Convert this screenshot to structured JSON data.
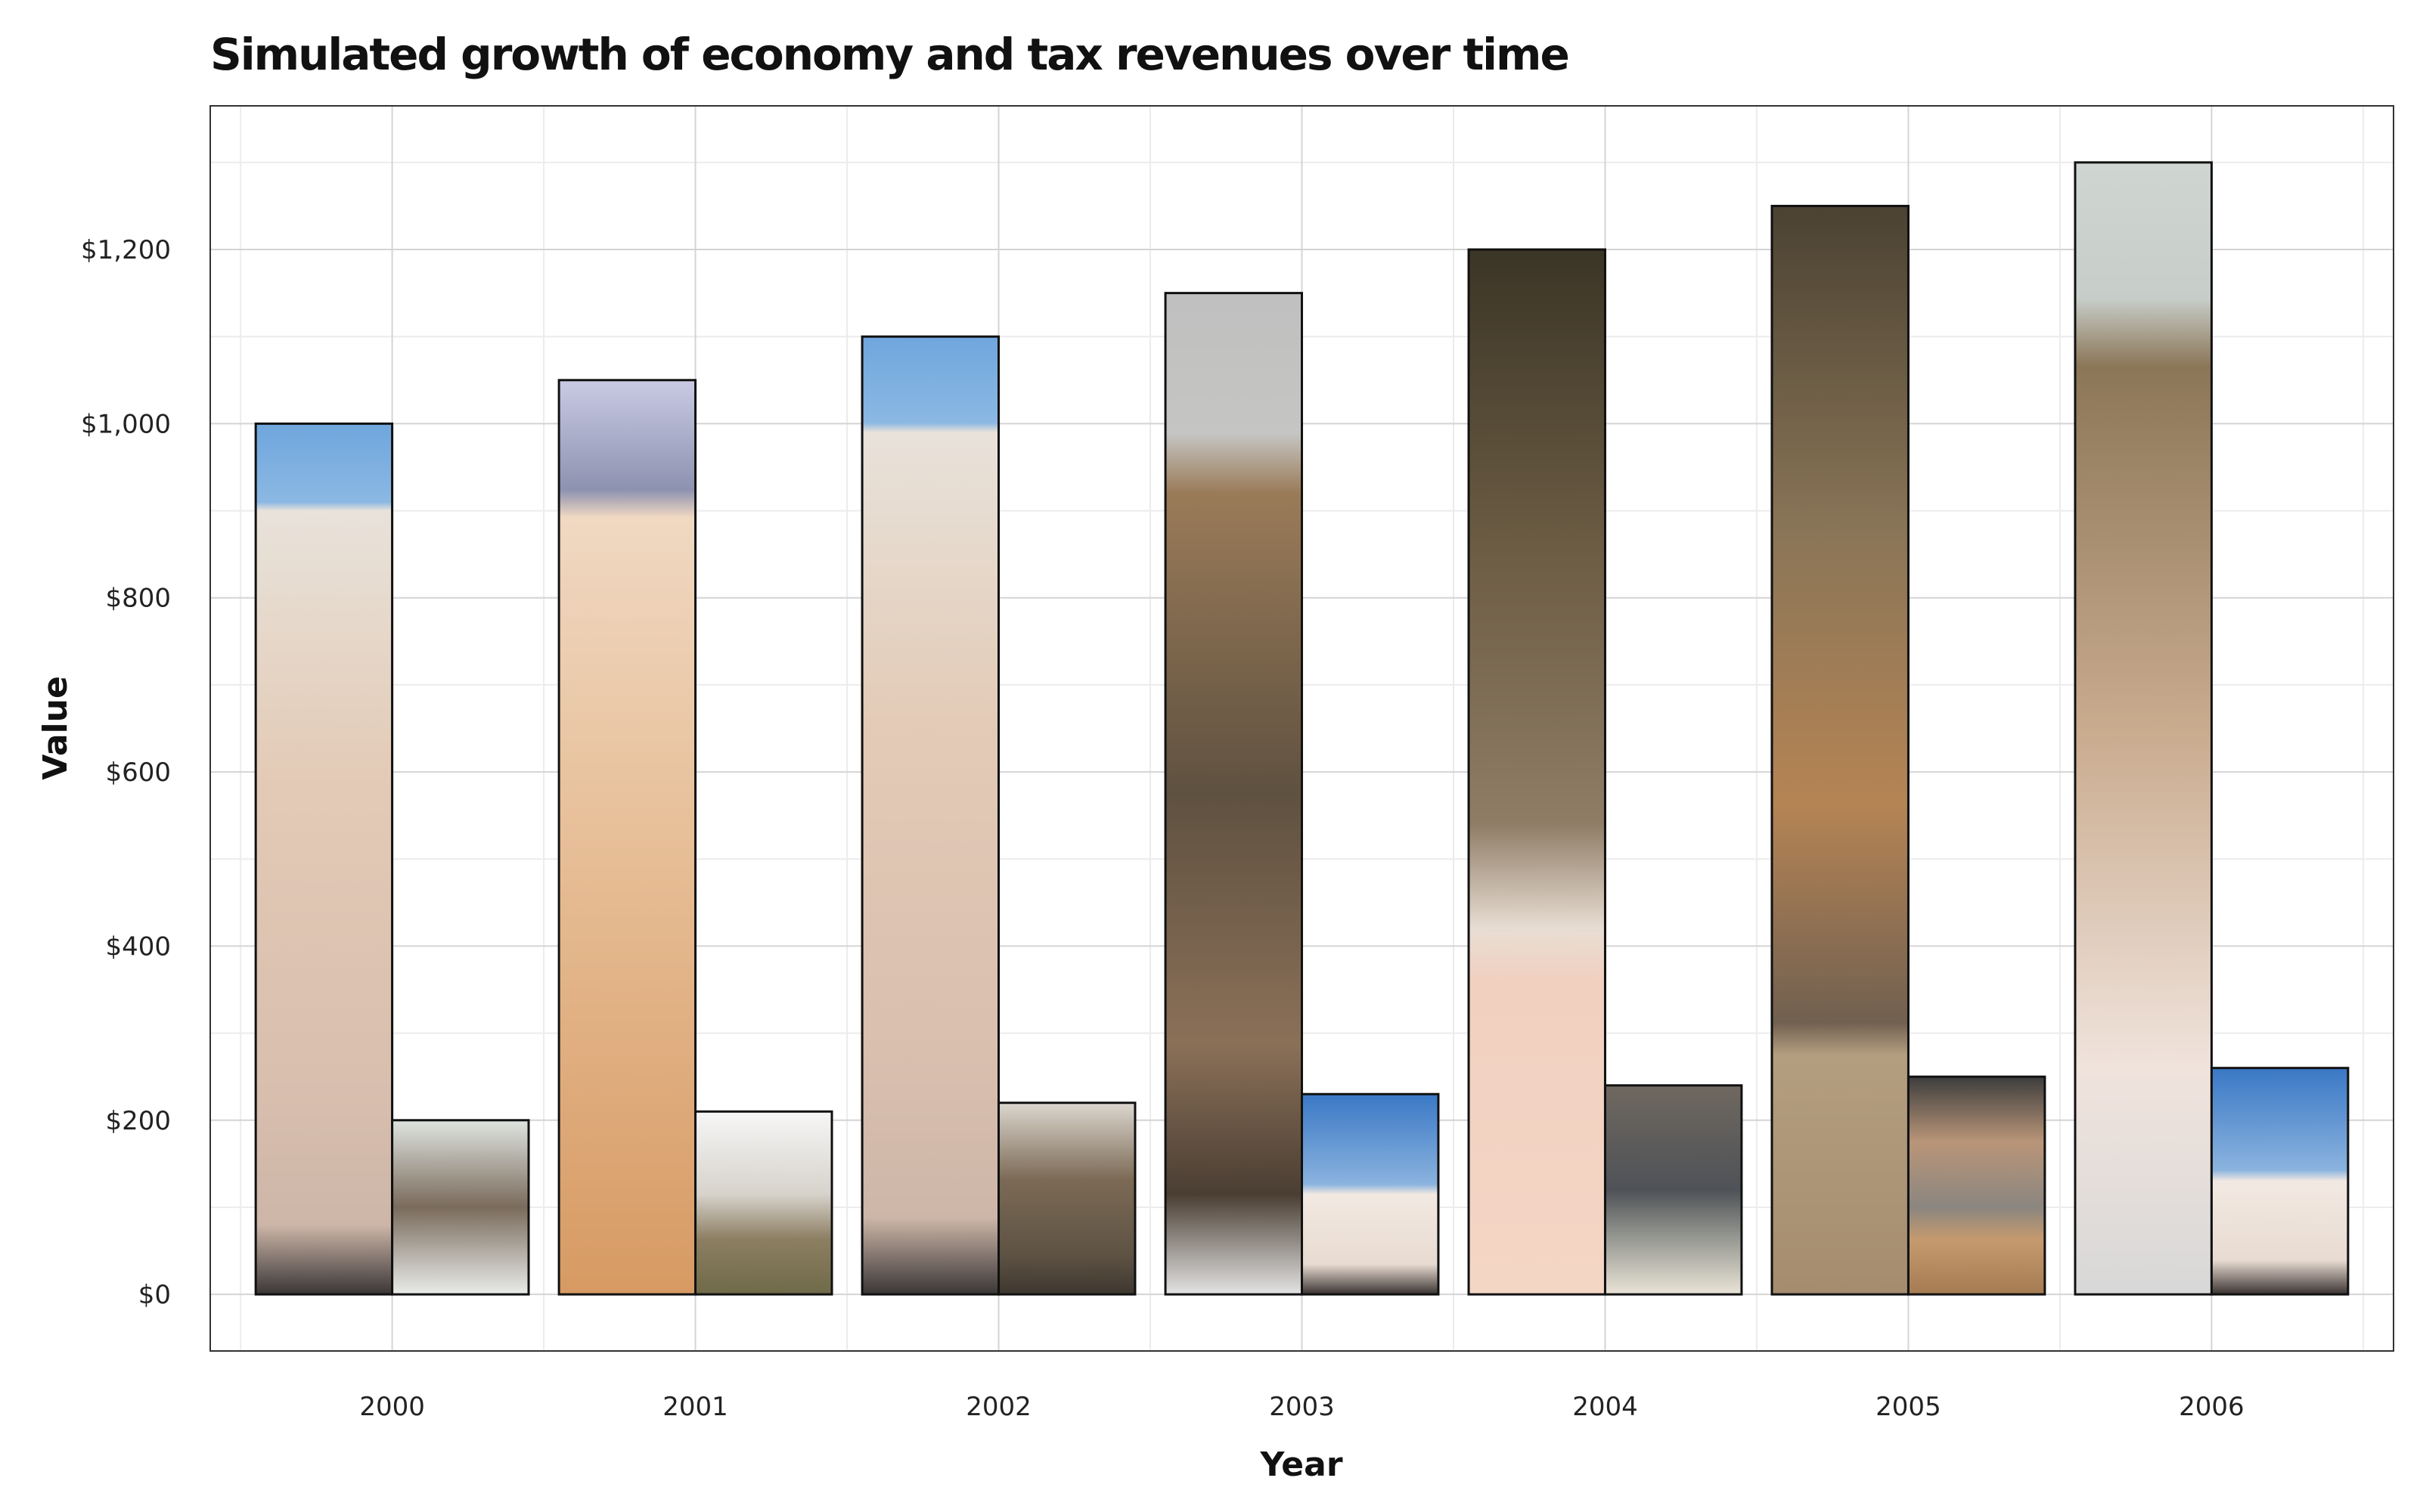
{
  "chart_data": {
    "type": "bar",
    "title": "Simulated growth of economy and tax revenues over time",
    "xlabel": "Year",
    "ylabel": "Value",
    "categories": [
      "2000",
      "2001",
      "2002",
      "2003",
      "2004",
      "2005",
      "2006"
    ],
    "series": [
      {
        "values": [
          1000,
          1050,
          1100,
          1150,
          1200,
          1250,
          1300
        ]
      },
      {
        "values": [
          200,
          210,
          220,
          230,
          240,
          250,
          260
        ]
      }
    ],
    "ylim": [
      -65,
      1365
    ],
    "yticks": [
      0,
      200,
      400,
      600,
      800,
      1000,
      1200
    ],
    "ytick_labels": [
      "$0",
      "$200",
      "$400",
      "$600",
      "$800",
      "$1,000",
      "$1,200"
    ],
    "grid": true,
    "bar_fill": "kitten photographs",
    "colors": {
      "grid_major": "#d4d4d4",
      "grid_minor": "#ececec",
      "panel_border": "#333333"
    }
  }
}
